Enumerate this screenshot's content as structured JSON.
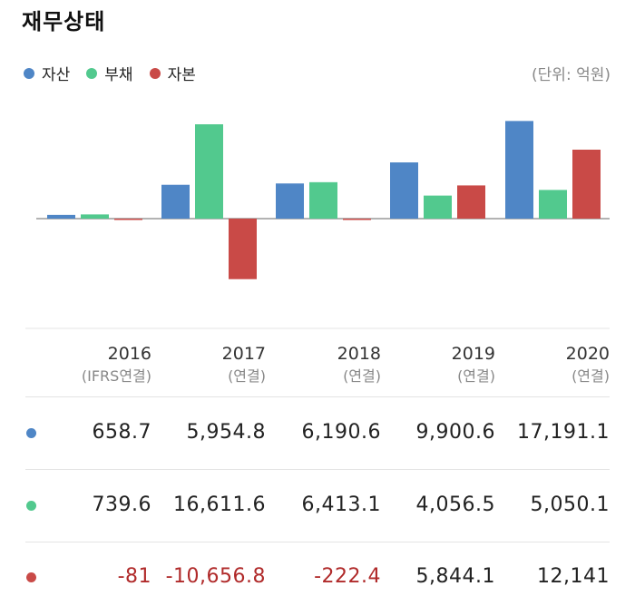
{
  "title": "재무상태",
  "unit_label": "(단위: 억원)",
  "colors": {
    "assets": "#4f86c6",
    "liabilities": "#52c98e",
    "equity": "#c94a47",
    "negative_text": "#b02a2a"
  },
  "chart_data": {
    "type": "bar",
    "categories": [
      "2016",
      "2017",
      "2018",
      "2019",
      "2020"
    ],
    "category_sublabels": [
      "(IFRS연결)",
      "(연결)",
      "(연결)",
      "(연결)",
      "(연결)"
    ],
    "series": [
      {
        "name": "자산",
        "values": [
          658.7,
          5954.8,
          6190.6,
          9900.6,
          17191.1
        ]
      },
      {
        "name": "부채",
        "values": [
          739.6,
          16611.6,
          6413.1,
          4056.5,
          5050.1
        ]
      },
      {
        "name": "자본",
        "values": [
          -81,
          -10656.8,
          -222.4,
          5844.1,
          12141
        ]
      }
    ],
    "legend_position": "top-left",
    "grid": false
  },
  "table": {
    "rows": [
      {
        "series": "assets",
        "cells": [
          "658.7",
          "5,954.8",
          "6,190.6",
          "9,900.6",
          "17,191.1"
        ],
        "negative": [
          false,
          false,
          false,
          false,
          false
        ]
      },
      {
        "series": "liabilities",
        "cells": [
          "739.6",
          "16,611.6",
          "6,413.1",
          "4,056.5",
          "5,050.1"
        ],
        "negative": [
          false,
          false,
          false,
          false,
          false
        ]
      },
      {
        "series": "equity",
        "cells": [
          "-81",
          "-10,656.8",
          "-222.4",
          "5,844.1",
          "12,141"
        ],
        "negative": [
          true,
          true,
          true,
          false,
          false
        ]
      }
    ]
  }
}
